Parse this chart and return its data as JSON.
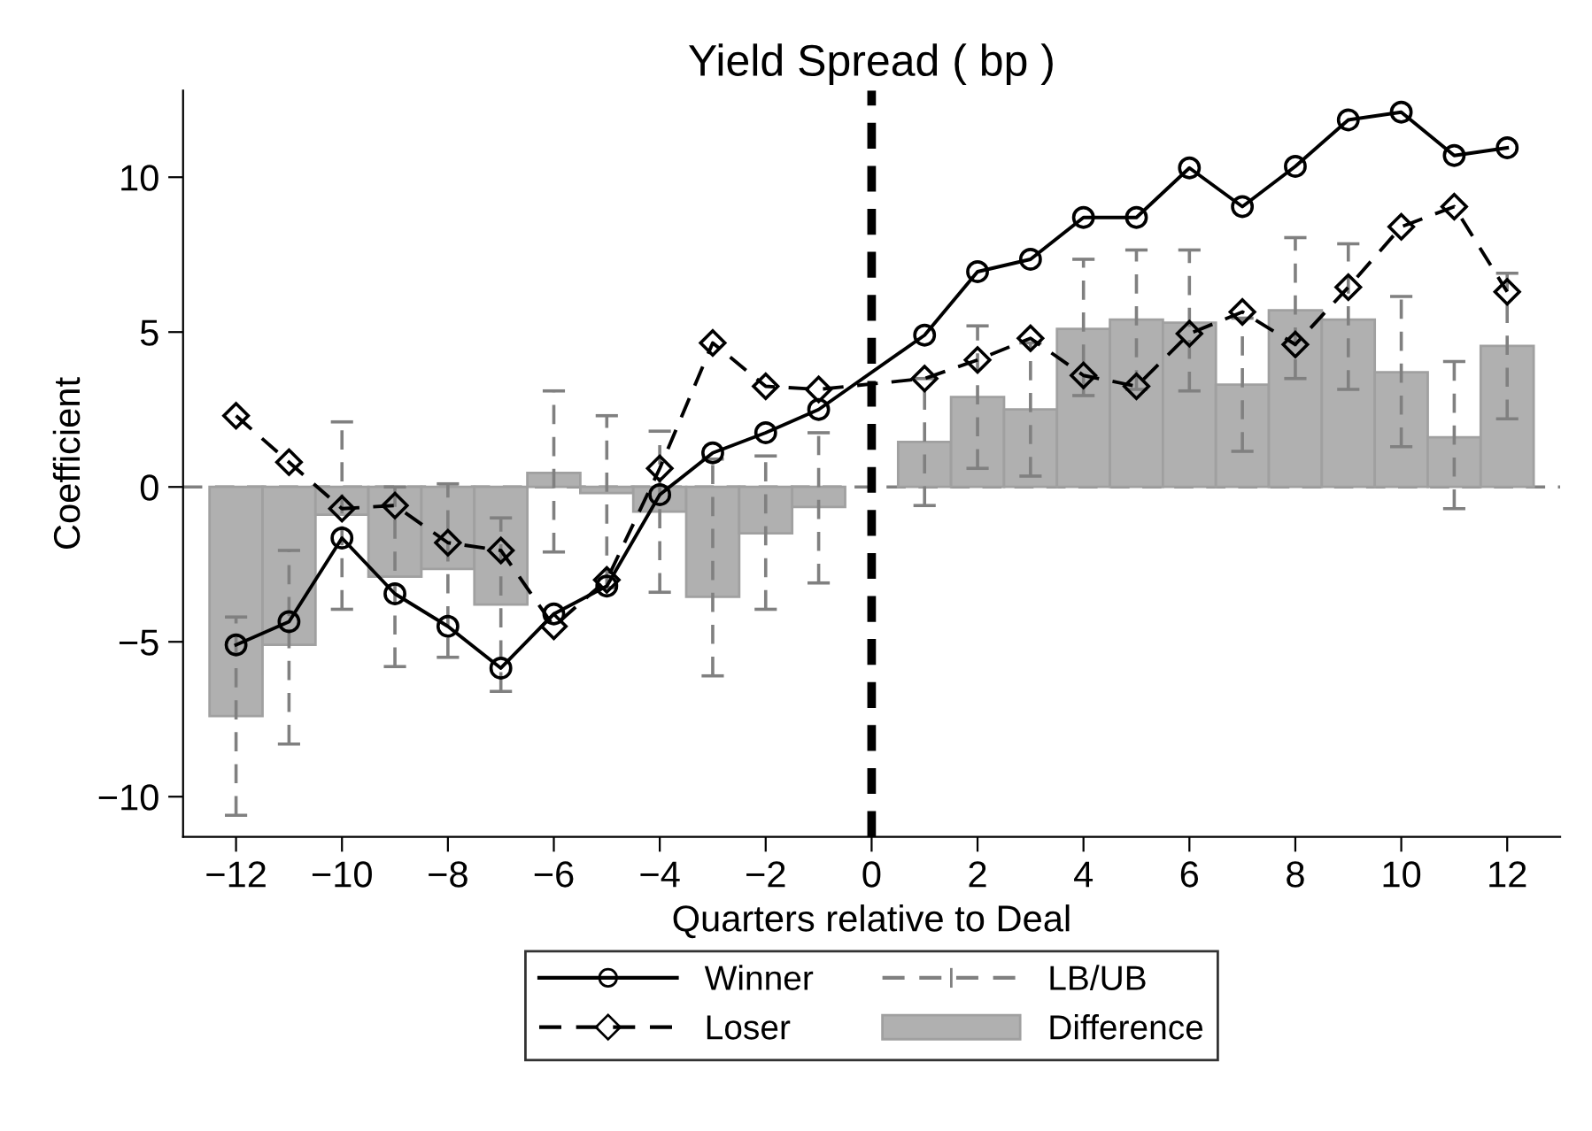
{
  "chart_data": {
    "type": "line",
    "title": "Yield Spread ( bp )",
    "xlabel": "Quarters relative to Deal",
    "ylabel": "Coefficient",
    "x": [
      -12,
      -11,
      -10,
      -9,
      -8,
      -7,
      -6,
      -5,
      -4,
      -3,
      -2,
      -1,
      1,
      2,
      3,
      4,
      5,
      6,
      7,
      8,
      9,
      10,
      11,
      12
    ],
    "series": [
      {
        "name": "Difference",
        "type": "bar",
        "color": "#b0b0b0",
        "values": [
          -7.4,
          -5.1,
          -0.9,
          -2.9,
          -2.65,
          -3.8,
          0.45,
          -0.2,
          -0.8,
          -3.55,
          -1.5,
          -0.65,
          1.45,
          2.9,
          2.5,
          5.1,
          5.4,
          5.3,
          3.3,
          5.7,
          5.4,
          3.7,
          1.6,
          4.55
        ],
        "errors": [
          [
            -10.6,
            -4.2
          ],
          [
            -8.3,
            -2.05
          ],
          [
            -3.95,
            2.1
          ],
          [
            -5.8,
            0.0
          ],
          [
            -5.5,
            0.1
          ],
          [
            -6.6,
            -1.0
          ],
          [
            -2.1,
            3.1
          ],
          [
            -3.25,
            2.3
          ],
          [
            -3.4,
            1.8
          ],
          [
            -6.1,
            0.9
          ],
          [
            -3.95,
            1.0
          ],
          [
            -3.1,
            1.75
          ],
          [
            -0.6,
            3.5
          ],
          [
            0.6,
            5.2
          ],
          [
            0.35,
            4.65
          ],
          [
            2.95,
            7.35
          ],
          [
            3.15,
            7.65
          ],
          [
            3.1,
            7.65
          ],
          [
            1.15,
            5.45
          ],
          [
            3.5,
            8.05
          ],
          [
            3.15,
            7.85
          ],
          [
            1.3,
            6.15
          ],
          [
            -0.7,
            4.05
          ],
          [
            2.2,
            6.9
          ]
        ]
      },
      {
        "name": "Winner",
        "marker": "circle",
        "line_style": "solid",
        "color": "#000000",
        "values": [
          -5.1,
          -4.35,
          -1.65,
          -3.45,
          -4.5,
          -5.85,
          -4.1,
          -3.2,
          -0.25,
          1.1,
          1.75,
          2.5,
          4.9,
          6.95,
          7.35,
          8.7,
          8.7,
          10.3,
          9.05,
          10.35,
          11.85,
          12.1,
          10.7,
          10.95
        ]
      },
      {
        "name": "Loser",
        "marker": "diamond",
        "line_style": "dashed",
        "color": "#000000",
        "values": [
          2.3,
          0.8,
          -0.7,
          -0.6,
          -1.8,
          -2.05,
          -4.5,
          -3.0,
          0.6,
          4.65,
          3.25,
          3.15,
          3.5,
          4.1,
          4.8,
          3.6,
          3.25,
          4.95,
          5.65,
          4.6,
          6.45,
          8.4,
          9.05,
          6.3
        ]
      }
    ],
    "annotations": [
      "LB/UB"
    ],
    "xlim": [
      -13,
      13
    ],
    "ylim": [
      -11.3,
      12.8
    ],
    "xticks": [
      {
        "value": -12,
        "label": "−12"
      },
      {
        "value": -10,
        "label": "−10"
      },
      {
        "value": -8,
        "label": "−8"
      },
      {
        "value": -6,
        "label": "−6"
      },
      {
        "value": -4,
        "label": "−4"
      },
      {
        "value": -2,
        "label": "−2"
      },
      0,
      2,
      4,
      6,
      8,
      10,
      12
    ],
    "yticks": [
      {
        "value": -10,
        "label": "−10"
      },
      {
        "value": -5,
        "label": "−5"
      },
      0,
      5,
      10
    ],
    "ref_lines": [
      {
        "axis": "y",
        "value": 0,
        "color": "#808080",
        "line_style": "dashed"
      },
      {
        "axis": "x",
        "value": 0,
        "color": "#000000",
        "line_style": "dashed"
      }
    ],
    "grid": false,
    "legend": "bottom"
  }
}
